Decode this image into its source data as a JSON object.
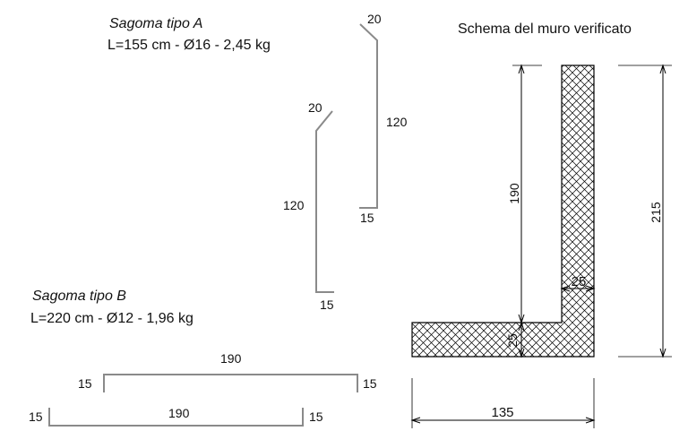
{
  "shape_a": {
    "title": "Sagoma tipo A",
    "spec": "L=155 cm - Ø16 - 2,45 kg",
    "seg_hook_top": "20",
    "seg_right_vertical": "120",
    "seg_foot_right": "15",
    "seg_hook_left": "20",
    "seg_left_vertical": "120",
    "seg_foot_left": "15"
  },
  "shape_b": {
    "title": "Sagoma tipo B",
    "spec": "L=220 cm - Ø12 - 1,96 kg",
    "upper_leg_left": "15",
    "upper_length": "190",
    "upper_leg_right": "15",
    "lower_leg_left": "15",
    "lower_length": "190",
    "lower_leg_right": "15"
  },
  "wall": {
    "title": "Schema del muro verificato",
    "stem_height": "190",
    "total_height": "215",
    "stem_thickness": "25",
    "base_thickness": "25",
    "base_width": "135"
  },
  "colors": {
    "rebar": "#8a8a8a",
    "lines": "#000000",
    "hatch": "#000000"
  }
}
